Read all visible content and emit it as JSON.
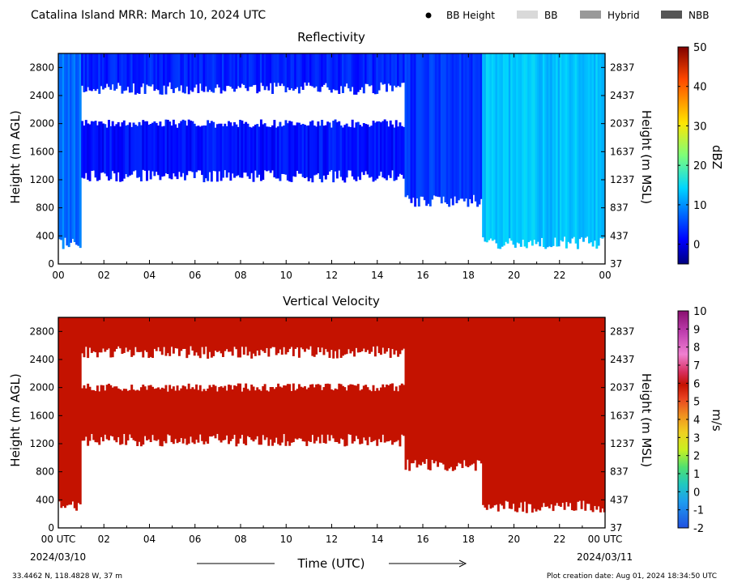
{
  "header": {
    "title": "Catalina Island MRR:  March 10, 2024 UTC",
    "legend": [
      {
        "label": "BB Height",
        "color": "#000000",
        "shape": "dot"
      },
      {
        "label": "BB",
        "color": "#d9d9d9",
        "shape": "box"
      },
      {
        "label": "Hybrid",
        "color": "#999999",
        "shape": "box"
      },
      {
        "label": "NBB",
        "color": "#555555",
        "shape": "box"
      }
    ]
  },
  "footer": {
    "location": "33.4462 N, 118.4828 W, 37 m",
    "xlabel": "Time (UTC)",
    "start_date": "2024/03/10",
    "end_date": "2024/03/11",
    "creation": "Plot creation date: Aug 01, 2024 18:34:50 UTC"
  },
  "chart_data": [
    {
      "type": "heatmap",
      "title": "Reflectivity",
      "ylabel_left": "Height (m AGL)",
      "ylabel_right": "Height (m MSL)",
      "x_ticks": [
        "00",
        "02",
        "04",
        "06",
        "08",
        "10",
        "12",
        "14",
        "16",
        "18",
        "20",
        "22",
        "00"
      ],
      "y_ticks_left": [
        "0",
        "400",
        "800",
        "1200",
        "1600",
        "2000",
        "2400",
        "2800"
      ],
      "y_ticks_right": [
        "37",
        "437",
        "837",
        "1237",
        "1637",
        "2037",
        "2437",
        "2837"
      ],
      "xlim_hours": [
        0,
        24
      ],
      "ylim_m_agl": [
        0,
        3000
      ],
      "colorbar": {
        "label": "dBZ",
        "range": [
          -5,
          50
        ],
        "ticks": [
          "0",
          "10",
          "20",
          "30",
          "40",
          "50"
        ]
      },
      "echo_periods": [
        {
          "start_hour": 0.0,
          "end_hour": 1.0,
          "bottom_m": 300,
          "top_m": 3000,
          "value_dbz": 8
        },
        {
          "start_hour": 1.0,
          "end_hour": 15.2,
          "bottom_m": 1250,
          "top_m": 2000,
          "value_dbz": 2
        },
        {
          "start_hour": 1.0,
          "end_hour": 15.2,
          "bottom_m": 2500,
          "top_m": 3000,
          "value_dbz": 3
        },
        {
          "start_hour": 15.2,
          "end_hour": 18.6,
          "bottom_m": 900,
          "top_m": 3000,
          "value_dbz": 4
        },
        {
          "start_hour": 18.6,
          "end_hour": 24.0,
          "bottom_m": 300,
          "top_m": 3000,
          "value_dbz": 13
        }
      ]
    },
    {
      "type": "heatmap",
      "title": "Vertical Velocity",
      "ylabel_left": "Height (m AGL)",
      "ylabel_right": "Height (m MSL)",
      "x_ticks": [
        "00 UTC",
        "02",
        "04",
        "06",
        "08",
        "10",
        "12",
        "14",
        "16",
        "18",
        "20",
        "22",
        "00 UTC"
      ],
      "y_ticks_left": [
        "0",
        "400",
        "800",
        "1200",
        "1600",
        "2000",
        "2400",
        "2800"
      ],
      "y_ticks_right": [
        "37",
        "437",
        "837",
        "1237",
        "1637",
        "2037",
        "2437",
        "2837"
      ],
      "xlim_hours": [
        0,
        24
      ],
      "ylim_m_agl": [
        0,
        3000
      ],
      "colorbar": {
        "label": "m/s",
        "range": [
          -2,
          10
        ],
        "ticks": [
          "-2",
          "-1",
          "0",
          "1",
          "2",
          "3",
          "4",
          "5",
          "6",
          "7",
          "8",
          "9",
          "10"
        ]
      },
      "echo_color": "#c41200",
      "echo_periods": [
        {
          "start_hour": 0.0,
          "end_hour": 1.0,
          "bottom_m": 300,
          "top_m": 3000,
          "value_ms": 6
        },
        {
          "start_hour": 1.0,
          "end_hour": 15.2,
          "bottom_m": 1250,
          "top_m": 2000,
          "value_ms": 6
        },
        {
          "start_hour": 1.0,
          "end_hour": 15.2,
          "bottom_m": 2500,
          "top_m": 3000,
          "value_ms": 6
        },
        {
          "start_hour": 15.2,
          "end_hour": 18.6,
          "bottom_m": 900,
          "top_m": 3000,
          "value_ms": 6
        },
        {
          "start_hour": 18.6,
          "end_hour": 24.0,
          "bottom_m": 300,
          "top_m": 3000,
          "value_ms": 6
        }
      ]
    }
  ]
}
